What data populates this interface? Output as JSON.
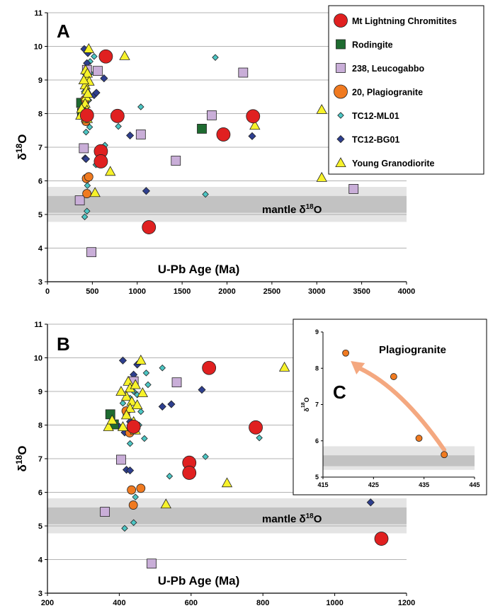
{
  "colors": {
    "mt_lightning": "#e02020",
    "rodingite": "#1e6b30",
    "leucogabbo": "#c9aed8",
    "plagiogranite": "#f07a20",
    "ml01": "#4cc6c4",
    "bg01": "#2e3f8f",
    "young": "#f7f22a",
    "band_outer": "#e4e4e4",
    "band_inner": "#c2c2c2",
    "arrow": "#f4a880"
  },
  "chart_data": [
    {
      "panel": "A",
      "type": "scatter",
      "xlabel": "U-Pb Age (Ma)",
      "ylabel_main": "δ",
      "ylabel_sup": "18",
      "ylabel_tail": "O",
      "xlim": [
        0,
        4000
      ],
      "ylim": [
        3,
        11
      ],
      "xticks": [
        0,
        500,
        1000,
        1500,
        2000,
        2500,
        3000,
        3500,
        4000
      ],
      "yticks": [
        3,
        4,
        5,
        6,
        7,
        8,
        9,
        10,
        11
      ],
      "grid": true,
      "legend_position": "top-right",
      "annotation": {
        "text_main": "mantle δ",
        "text_sup": "18",
        "text_tail": "O",
        "band_outer": [
          4.78,
          5.82
        ],
        "band_inner": [
          5.05,
          5.55
        ]
      },
      "series": [
        {
          "name": "Mt Lightning Chromitites",
          "marker": "circle",
          "color_key": "mt_lightning",
          "points": [
            [
              650,
              9.7
            ],
            [
              780,
              7.93
            ],
            [
              595,
              6.88
            ],
            [
              595,
              6.58
            ],
            [
              1130,
              4.62
            ],
            [
              1960,
              7.38
            ],
            [
              2290,
              7.92
            ],
            [
              440,
              7.95
            ]
          ]
        },
        {
          "name": "Rodingite",
          "marker": "square",
          "color_key": "rodingite",
          "points": [
            [
              375,
              8.32
            ],
            [
              385,
              8.02
            ],
            [
              1720,
              7.55
            ]
          ]
        },
        {
          "name": "238, Leucogabbo",
          "marker": "square",
          "color_key": "leucogabbo",
          "points": [
            [
              560,
              9.27
            ],
            [
              405,
              6.97
            ],
            [
              1040,
              7.38
            ],
            [
              1830,
              7.95
            ],
            [
              2180,
              9.22
            ],
            [
              1430,
              6.6
            ],
            [
              360,
              5.42
            ],
            [
              490,
              3.88
            ],
            [
              3410,
              5.76
            ],
            [
              440,
              9.3
            ]
          ]
        },
        {
          "name": "20, Plagiogranite",
          "marker": "circle-small",
          "color_key": "plagiogranite",
          "points": [
            [
              419,
              8.42
            ],
            [
              429,
              7.77
            ],
            [
              434,
              6.07
            ],
            [
              439,
              5.62
            ],
            [
              460,
              6.12
            ]
          ]
        },
        {
          "name": "TC12-ML01",
          "marker": "diamond-small",
          "color_key": "ml01",
          "points": [
            [
              520,
              9.7
            ],
            [
              475,
              9.55
            ],
            [
              440,
              9.0
            ],
            [
              430,
              8.8
            ],
            [
              460,
              8.4
            ],
            [
              455,
              8.0
            ],
            [
              470,
              7.6
            ],
            [
              430,
              7.45
            ],
            [
              790,
              7.62
            ],
            [
              640,
              7.06
            ],
            [
              1040,
              8.2
            ],
            [
              1870,
              9.67
            ],
            [
              1760,
              5.6
            ],
            [
              540,
              6.48
            ],
            [
              445,
              5.86
            ],
            [
              440,
              5.1
            ],
            [
              415,
              4.93
            ],
            [
              410,
              8.65
            ],
            [
              450,
              8.9
            ],
            [
              480,
              9.2
            ]
          ]
        },
        {
          "name": "TC12-BG01",
          "marker": "diamond",
          "color_key": "bg01",
          "points": [
            [
              410,
              9.92
            ],
            [
              450,
              9.8
            ],
            [
              520,
              8.55
            ],
            [
              545,
              8.62
            ],
            [
              420,
              8.3
            ],
            [
              430,
              8.1
            ],
            [
              415,
              7.78
            ],
            [
              920,
              7.35
            ],
            [
              630,
              9.05
            ],
            [
              420,
              6.67
            ],
            [
              430,
              6.65
            ],
            [
              1100,
              5.7
            ],
            [
              2280,
              7.33
            ],
            [
              440,
              9.5
            ],
            [
              400,
              7.95
            ]
          ]
        },
        {
          "name": "Young Granodiorite",
          "marker": "triangle",
          "color_key": "young",
          "points": [
            [
              460,
              9.93
            ],
            [
              860,
              9.72
            ],
            [
              425,
              9.3
            ],
            [
              430,
              9.1
            ],
            [
              445,
              9.2
            ],
            [
              465,
              8.96
            ],
            [
              420,
              8.85
            ],
            [
              435,
              8.7
            ],
            [
              430,
              8.5
            ],
            [
              420,
              8.3
            ],
            [
              440,
              8.1
            ],
            [
              410,
              7.95
            ],
            [
              445,
              7.85
            ],
            [
              370,
              7.95
            ],
            [
              380,
              8.15
            ],
            [
              700,
              6.28
            ],
            [
              530,
              5.65
            ],
            [
              3055,
              8.12
            ],
            [
              2310,
              7.65
            ],
            [
              3055,
              6.1
            ],
            [
              405,
              9.0
            ],
            [
              450,
              8.6
            ]
          ]
        }
      ]
    },
    {
      "panel": "B",
      "type": "scatter",
      "xlabel": "U-Pb Age (Ma)",
      "ylabel_main": "δ",
      "ylabel_sup": "18",
      "ylabel_tail": "O",
      "xlim": [
        200,
        1200
      ],
      "ylim": [
        3,
        11
      ],
      "xticks": [
        200,
        400,
        600,
        800,
        1000,
        1200
      ],
      "yticks": [
        3,
        4,
        5,
        6,
        7,
        8,
        9,
        10,
        11
      ],
      "grid": true,
      "annotation": {
        "text_main": "mantle δ",
        "text_sup": "18",
        "text_tail": "O",
        "band_outer": [
          4.78,
          5.82
        ],
        "band_inner": [
          5.05,
          5.55
        ]
      }
    },
    {
      "panel": "C",
      "type": "scatter",
      "title": "Plagiogranite",
      "ylabel_main": "δ",
      "ylabel_sup": "18",
      "ylabel_tail": "O",
      "xlim": [
        415,
        445
      ],
      "ylim": [
        5,
        9
      ],
      "xticks": [
        415,
        425,
        435,
        445
      ],
      "yticks": [
        5,
        6,
        7,
        8,
        9
      ],
      "grid": false,
      "band_outer": [
        5.2,
        5.85
      ],
      "band_inner": [
        5.3,
        5.6
      ],
      "points": [
        [
          419.5,
          8.42
        ],
        [
          429,
          7.77
        ],
        [
          434,
          6.07
        ],
        [
          439,
          5.62
        ]
      ],
      "arrow": {
        "from": [
          439,
          5.75
        ],
        "to": [
          420.5,
          8.2
        ]
      }
    }
  ]
}
